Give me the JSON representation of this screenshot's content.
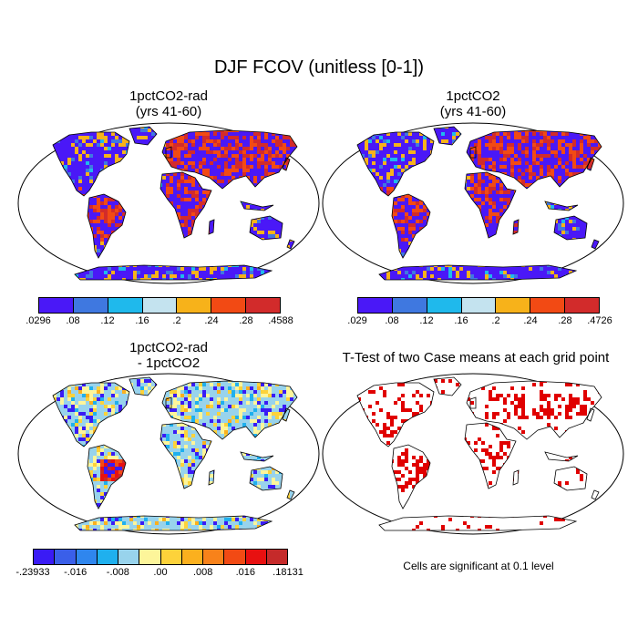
{
  "figure": {
    "title": "DJF FCOV (unitless [0-1])"
  },
  "panels": [
    {
      "title_line1": "1pctCO2-rad",
      "title_line2": "(yrs 41-60)",
      "colorbar": {
        "colors": [
          "#4a18f7",
          "#3f78e0",
          "#1fb9ec",
          "#c4e3ef",
          "#f7b21a",
          "#f24a14",
          "#d22b2b"
        ],
        "ticks": [
          ".0296",
          ".08",
          ".12",
          ".16",
          ".2",
          ".24",
          ".28",
          ".4588"
        ]
      }
    },
    {
      "title_line1": "1pctCO2",
      "title_line2": "(yrs 41-60)",
      "colorbar": {
        "colors": [
          "#4a18f7",
          "#3f78e0",
          "#1fb9ec",
          "#c4e3ef",
          "#f7b21a",
          "#f24a14",
          "#d22b2b"
        ],
        "ticks": [
          ".029",
          ".08",
          ".12",
          ".16",
          ".2",
          ".24",
          ".28",
          ".4726"
        ]
      }
    },
    {
      "title_line1": "1pctCO2-rad",
      "title_line2": "- 1pctCO2",
      "colorbar": {
        "colors": [
          "#3a1bf5",
          "#3a5fe9",
          "#2f86ee",
          "#1fb0ee",
          "#98d3ec",
          "#fdf59a",
          "#fdd23a",
          "#fbb01e",
          "#f8821a",
          "#f24a14",
          "#e81010",
          "#c52a2a"
        ],
        "ticks": [
          "-.23933",
          "-.016",
          "-.008",
          ".00",
          ".008",
          ".016",
          ".18131"
        ]
      }
    },
    {
      "title_line1": "T-Test of two Case means at each grid point",
      "note": "Cells are significant at 0.1 level"
    }
  ]
}
